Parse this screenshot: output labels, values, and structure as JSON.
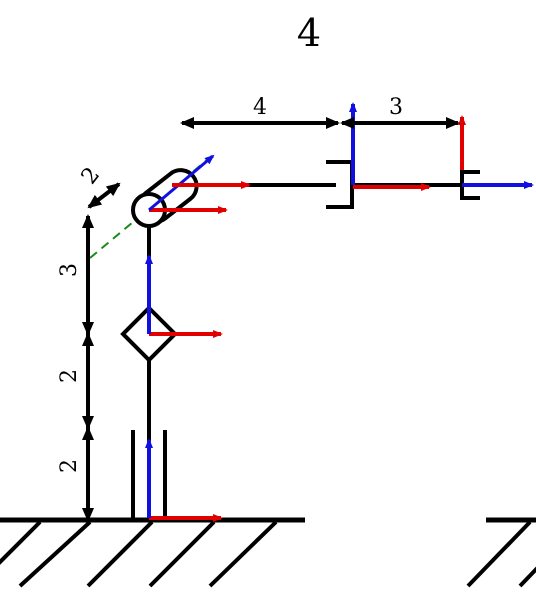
{
  "title": "4",
  "dimensions": {
    "left_top": "2",
    "left_3": "3",
    "left_2_upper": "2",
    "left_2_lower": "2",
    "top_4": "4",
    "top_3": "3"
  },
  "colors": {
    "x_axis": "#e00000",
    "z_axis": "#1010e0",
    "link": "#000000",
    "offset_line": "#1a8a1a"
  }
}
